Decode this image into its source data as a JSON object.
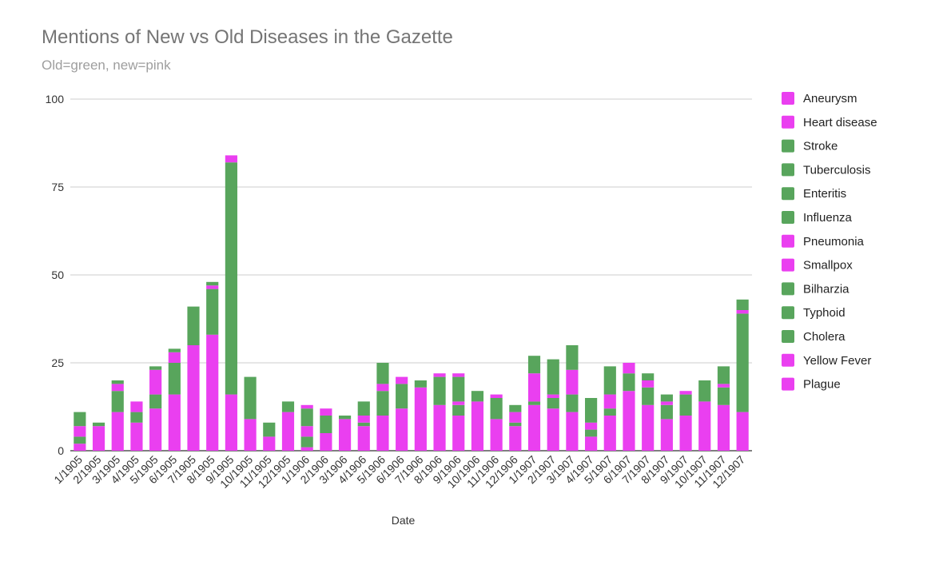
{
  "chart_data": {
    "type": "bar",
    "stacked": true,
    "title": "Mentions of New vs Old Diseases in the Gazette",
    "subtitle": "Old=green, new=pink",
    "xlabel": "Date",
    "ylabel": "",
    "ylim": [
      0,
      100
    ],
    "yticks": [
      0,
      25,
      50,
      75,
      100
    ],
    "grid": true,
    "legend_position": "right",
    "colors": {
      "new": "#ea3ff0",
      "old": "#58a55c"
    },
    "categories": [
      "1/1905",
      "2/1905",
      "3/1905",
      "4/1905",
      "5/1905",
      "6/1905",
      "7/1905",
      "8/1905",
      "9/1905",
      "10/1905",
      "11/1905",
      "12/1905",
      "1/1906",
      "2/1906",
      "3/1906",
      "4/1906",
      "5/1906",
      "6/1906",
      "7/1906",
      "8/1906",
      "9/1906",
      "10/1906",
      "11/1906",
      "12/1906",
      "1/1907",
      "2/1907",
      "3/1907",
      "4/1907",
      "5/1907",
      "6/1907",
      "7/1907",
      "8/1907",
      "9/1907",
      "10/1907",
      "11/1907",
      "12/1907"
    ],
    "series": [
      {
        "name": "Plague",
        "group": "new",
        "values": [
          2,
          7,
          11,
          8,
          12,
          16,
          30,
          33,
          16,
          9,
          4,
          11,
          1,
          5,
          9,
          7,
          10,
          12,
          18,
          13,
          10,
          14,
          9,
          7,
          13,
          12,
          11,
          4,
          10,
          17,
          13,
          9,
          10,
          14,
          13,
          11
        ]
      },
      {
        "name": "Yellow Fever",
        "group": "new",
        "values": [
          0,
          0,
          0,
          0,
          0,
          0,
          0,
          0,
          0,
          0,
          0,
          0,
          0,
          0,
          0,
          0,
          0,
          0,
          0,
          0,
          0,
          0,
          0,
          0,
          0,
          0,
          0,
          0,
          0,
          0,
          0,
          0,
          0,
          0,
          0,
          0
        ]
      },
      {
        "name": "Cholera",
        "group": "old",
        "values": [
          2,
          1,
          6,
          3,
          4,
          9,
          11,
          13,
          66,
          12,
          4,
          3,
          3,
          5,
          1,
          1,
          7,
          7,
          2,
          8,
          3,
          3,
          6,
          1,
          1,
          3,
          5,
          2,
          2,
          5,
          5,
          4,
          6,
          6,
          5,
          28
        ]
      },
      {
        "name": "Typhoid",
        "group": "old",
        "values": [
          0,
          0,
          0,
          0,
          0,
          0,
          0,
          0,
          0,
          0,
          0,
          0,
          0,
          0,
          0,
          0,
          0,
          0,
          0,
          0,
          0,
          0,
          0,
          0,
          0,
          0,
          0,
          0,
          0,
          0,
          0,
          0,
          0,
          0,
          0,
          0
        ]
      },
      {
        "name": "Bilharzia",
        "group": "old",
        "values": [
          0,
          0,
          0,
          0,
          0,
          0,
          0,
          0,
          0,
          0,
          0,
          0,
          0,
          0,
          0,
          0,
          0,
          0,
          0,
          0,
          0,
          0,
          0,
          0,
          0,
          0,
          0,
          0,
          0,
          0,
          0,
          0,
          0,
          0,
          0,
          0
        ]
      },
      {
        "name": "Smallpox",
        "group": "new",
        "values": [
          3,
          0,
          2,
          3,
          7,
          3,
          0,
          1,
          2,
          0,
          0,
          0,
          3,
          2,
          0,
          2,
          2,
          2,
          0,
          1,
          1,
          0,
          1,
          3,
          8,
          1,
          7,
          2,
          4,
          3,
          2,
          1,
          1,
          0,
          1,
          1
        ]
      },
      {
        "name": "Pneumonia",
        "group": "new",
        "values": [
          0,
          0,
          0,
          0,
          0,
          0,
          0,
          0,
          0,
          0,
          0,
          0,
          0,
          0,
          0,
          0,
          0,
          0,
          0,
          0,
          0,
          0,
          0,
          0,
          0,
          0,
          0,
          0,
          0,
          0,
          0,
          0,
          0,
          0,
          0,
          0
        ]
      },
      {
        "name": "Influenza",
        "group": "old",
        "values": [
          4,
          0,
          1,
          0,
          1,
          1,
          0,
          1,
          0,
          0,
          0,
          0,
          5,
          0,
          0,
          4,
          6,
          0,
          0,
          0,
          7,
          0,
          0,
          2,
          5,
          10,
          7,
          7,
          8,
          0,
          2,
          2,
          0,
          0,
          5,
          3
        ]
      },
      {
        "name": "Enteritis",
        "group": "old",
        "values": [
          0,
          0,
          0,
          0,
          0,
          0,
          0,
          0,
          0,
          0,
          0,
          0,
          0,
          0,
          0,
          0,
          0,
          0,
          0,
          0,
          0,
          0,
          0,
          0,
          0,
          0,
          0,
          0,
          0,
          0,
          0,
          0,
          0,
          0,
          0,
          0
        ]
      },
      {
        "name": "Tuberculosis",
        "group": "old",
        "values": [
          0,
          0,
          0,
          0,
          0,
          0,
          0,
          0,
          0,
          0,
          0,
          0,
          0,
          0,
          0,
          0,
          0,
          0,
          0,
          0,
          0,
          0,
          0,
          0,
          0,
          0,
          0,
          0,
          0,
          0,
          0,
          0,
          0,
          0,
          0,
          0
        ]
      },
      {
        "name": "Stroke",
        "group": "old",
        "values": [
          0,
          0,
          0,
          0,
          0,
          0,
          0,
          0,
          0,
          0,
          0,
          0,
          0,
          0,
          0,
          0,
          0,
          0,
          0,
          0,
          0,
          0,
          0,
          0,
          0,
          0,
          0,
          0,
          0,
          0,
          0,
          0,
          0,
          0,
          0,
          0
        ]
      },
      {
        "name": "Heart disease",
        "group": "new",
        "values": [
          0,
          0,
          0,
          0,
          0,
          0,
          0,
          0,
          0,
          0,
          0,
          0,
          0,
          0,
          0,
          0,
          0,
          0,
          0,
          0,
          0,
          0,
          0,
          0,
          0,
          0,
          0,
          0,
          0,
          0,
          0,
          0,
          0,
          0,
          0,
          0
        ]
      },
      {
        "name": "Aneurysm",
        "group": "new",
        "values": [
          0,
          0,
          0,
          0,
          0,
          0,
          0,
          0,
          0,
          0,
          0,
          0,
          1,
          0,
          0,
          0,
          0,
          0,
          0,
          0,
          1,
          0,
          0,
          0,
          0,
          0,
          0,
          0,
          0,
          0,
          0,
          0,
          0,
          0,
          0,
          0
        ]
      }
    ],
    "legend_order": [
      "Aneurysm",
      "Heart disease",
      "Stroke",
      "Tuberculosis",
      "Enteritis",
      "Influenza",
      "Pneumonia",
      "Smallpox",
      "Bilharzia",
      "Typhoid",
      "Cholera",
      "Yellow Fever",
      "Plague"
    ]
  }
}
